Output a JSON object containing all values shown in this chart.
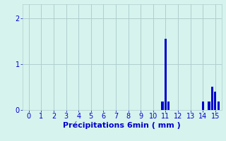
{
  "title": "",
  "xlabel": "Précipitations 6min ( mm )",
  "ylabel": "",
  "xlim": [
    -0.5,
    15.5
  ],
  "ylim": [
    0,
    2.3
  ],
  "yticks": [
    0,
    1,
    2
  ],
  "xticks": [
    0,
    1,
    2,
    3,
    4,
    5,
    6,
    7,
    8,
    9,
    10,
    11,
    12,
    13,
    14,
    15
  ],
  "bar_positions": [
    10.75,
    11.0,
    11.25,
    14.0,
    14.5,
    14.75,
    15.0,
    15.25
  ],
  "bar_heights": [
    0.18,
    1.55,
    0.18,
    0.18,
    0.18,
    0.5,
    0.4,
    0.18
  ],
  "bar_width": 0.18,
  "bar_color": "#0000cc",
  "bg_color": "#d6f3ee",
  "grid_color": "#b0cece",
  "tick_color": "#0000cc",
  "label_color": "#0000cc",
  "tick_fontsize": 7,
  "label_fontsize": 8
}
